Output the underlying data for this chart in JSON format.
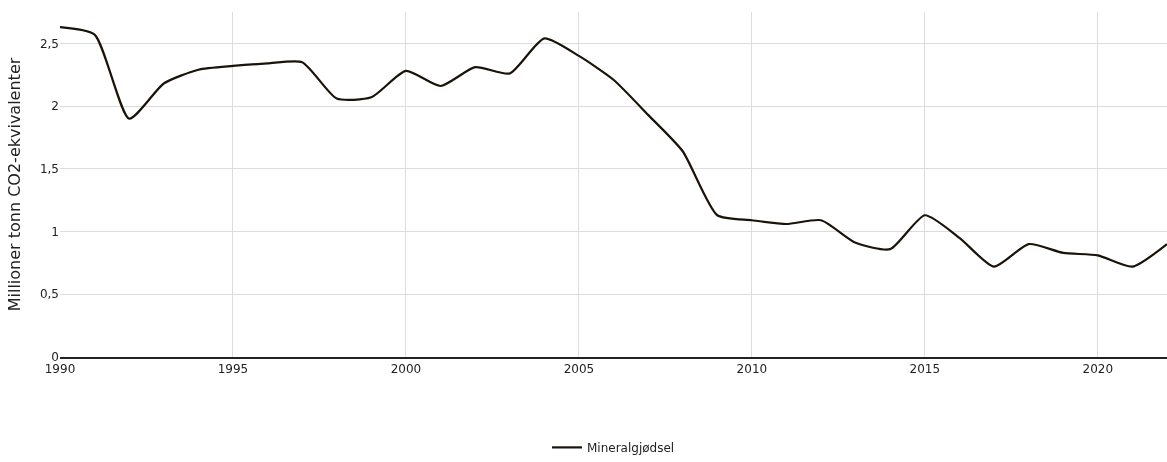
{
  "chart_data": {
    "type": "line",
    "ylabel": "Millioner tonn CO2-ekvivalenter",
    "x": [
      1990,
      1991,
      1992,
      1993,
      1994,
      1995,
      1996,
      1997,
      1998,
      1999,
      2000,
      2001,
      2002,
      2003,
      2004,
      2005,
      2006,
      2007,
      2008,
      2009,
      2010,
      2011,
      2012,
      2013,
      2014,
      2015,
      2016,
      2017,
      2018,
      2019,
      2020,
      2021,
      2022
    ],
    "series": [
      {
        "name": "Mineralgjødsel",
        "color": "#1a1408",
        "values": [
          2.63,
          2.57,
          1.9,
          2.18,
          2.29,
          2.32,
          2.34,
          2.35,
          2.06,
          2.07,
          2.28,
          2.16,
          2.31,
          2.26,
          2.54,
          2.4,
          2.21,
          1.93,
          1.64,
          1.13,
          1.09,
          1.06,
          1.09,
          0.91,
          0.86,
          1.13,
          0.95,
          0.72,
          0.9,
          0.83,
          0.81,
          0.72,
          0.9
        ]
      }
    ],
    "xlim": [
      1990,
      2022
    ],
    "xticks": [
      1990,
      1995,
      2000,
      2005,
      2010,
      2015,
      2020
    ],
    "ylim": [
      0,
      2.75
    ],
    "yticks": [
      0,
      {
        "value": 0.5,
        "label": "0,5"
      },
      1,
      {
        "value": 1.5,
        "label": "1,5"
      },
      2,
      {
        "value": 2.5,
        "label": "2,5"
      }
    ],
    "grid": true,
    "legend": "bottom",
    "marker": "none",
    "line_style": "solid"
  }
}
